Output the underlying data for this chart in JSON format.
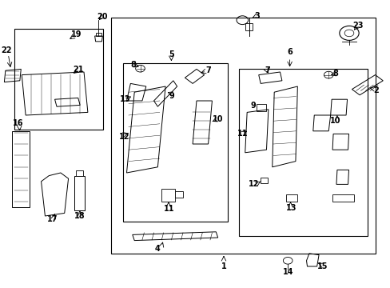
{
  "bg_color": "#ffffff",
  "fig_width": 4.89,
  "fig_height": 3.6,
  "dpi": 100,
  "font_size": 7,
  "line_color": "#000000"
}
